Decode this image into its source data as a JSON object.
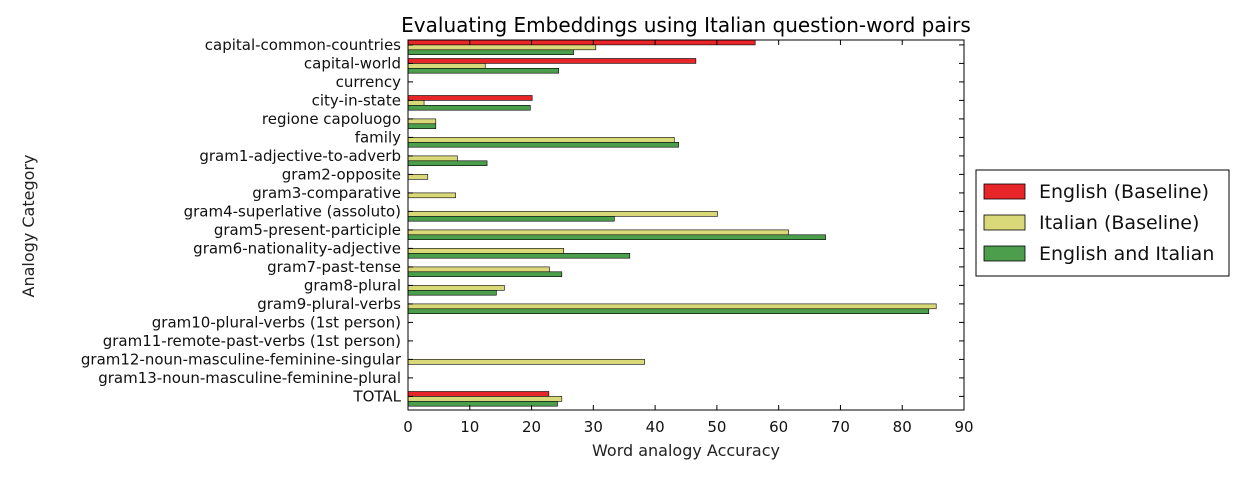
{
  "chart_data": {
    "type": "bar",
    "orientation": "horizontal",
    "title": "Evaluating Embeddings using Italian question-word pairs",
    "xlabel": "Word analogy Accuracy",
    "ylabel": "Analogy Category",
    "xlim": [
      0,
      90
    ],
    "xticks": [
      "0",
      "10",
      "20",
      "30",
      "40",
      "50",
      "60",
      "70",
      "80",
      "90"
    ],
    "legend_position": "right",
    "grid": false,
    "categories": [
      "capital-common-countries",
      "capital-world",
      "currency",
      "city-in-state",
      "regione capoluogo",
      "family",
      "gram1-adjective-to-adverb",
      "gram2-opposite",
      "gram3-comparative",
      "gram4-superlative (assoluto)",
      "gram5-present-participle",
      "gram6-nationality-adjective",
      "gram7-past-tense",
      "gram8-plural",
      "gram9-plural-verbs",
      "gram10-plural-verbs (1st person)",
      "gram11-remote-past-verbs (1st person)",
      "gram12-noun-masculine-feminine-singular",
      "gram13-noun-masculine-feminine-plural",
      "TOTAL"
    ],
    "series": [
      {
        "name": "English (Baseline)",
        "color": "#e8262a",
        "values": [
          56.2,
          46.6,
          0,
          20.1,
          0,
          0,
          0,
          0,
          0,
          0,
          0,
          0,
          0,
          0,
          0,
          0,
          0,
          0,
          0,
          22.8
        ]
      },
      {
        "name": "Italian (Baseline)",
        "color": "#d9d97a",
        "values": [
          30.4,
          12.5,
          0,
          2.6,
          4.5,
          43.1,
          8.0,
          3.2,
          7.7,
          50.1,
          61.6,
          25.2,
          22.9,
          15.6,
          85.5,
          0,
          0,
          38.3,
          0,
          24.9
        ]
      },
      {
        "name": "English and Italian",
        "color": "#4c9e4c",
        "values": [
          26.8,
          24.4,
          0,
          19.8,
          4.5,
          43.8,
          12.8,
          0,
          0,
          33.4,
          67.6,
          35.9,
          24.9,
          14.3,
          84.3,
          0,
          0,
          0,
          0,
          24.2
        ]
      }
    ]
  }
}
